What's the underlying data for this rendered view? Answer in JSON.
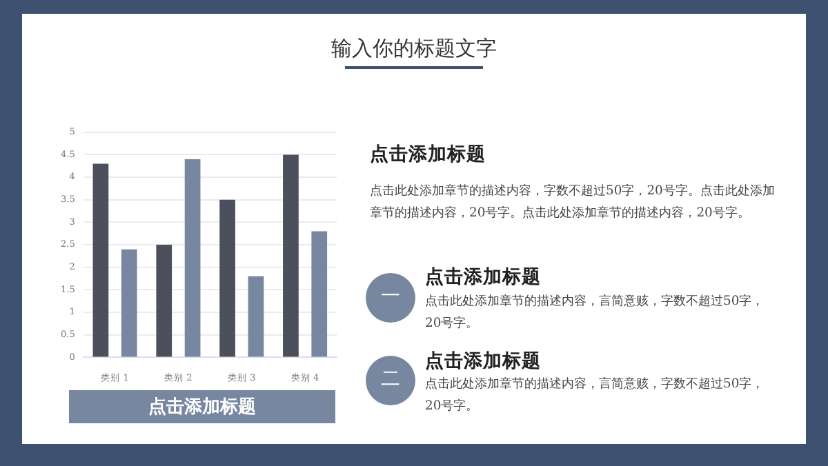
{
  "chart_data": {
    "type": "bar",
    "title": "输入你的标题文字",
    "categories": [
      "类别 1",
      "类别 2",
      "类别 3",
      "类别 4"
    ],
    "series": [
      {
        "color": "#4b505c",
        "values": [
          4.3,
          2.5,
          3.5,
          4.5
        ]
      },
      {
        "color": "#7787a0",
        "values": [
          2.4,
          4.4,
          1.8,
          2.8
        ]
      }
    ],
    "ylim": [
      0,
      5
    ],
    "yticks": [
      0,
      0.5,
      1,
      1.5,
      2,
      2.5,
      3,
      3.5,
      4,
      4.5,
      5
    ],
    "grid": "y",
    "legend": false,
    "annotations": [
      "点击添加标题",
      "点击添加标题",
      "点击此处添加章节的描述内容，字数不超过50字，20号字。点击此处添加章节的描述内容，20号字。点击此处添加章节的描述内容，20号字。",
      "一",
      "点击添加标题",
      "点击此处添加章节的描述内容，言简意赅，字数不超过50字，20号字。",
      "二",
      "点击添加标题",
      "点击此处添加章节的描述内容，言简意赅，字数不超过50字，20号字。"
    ]
  }
}
